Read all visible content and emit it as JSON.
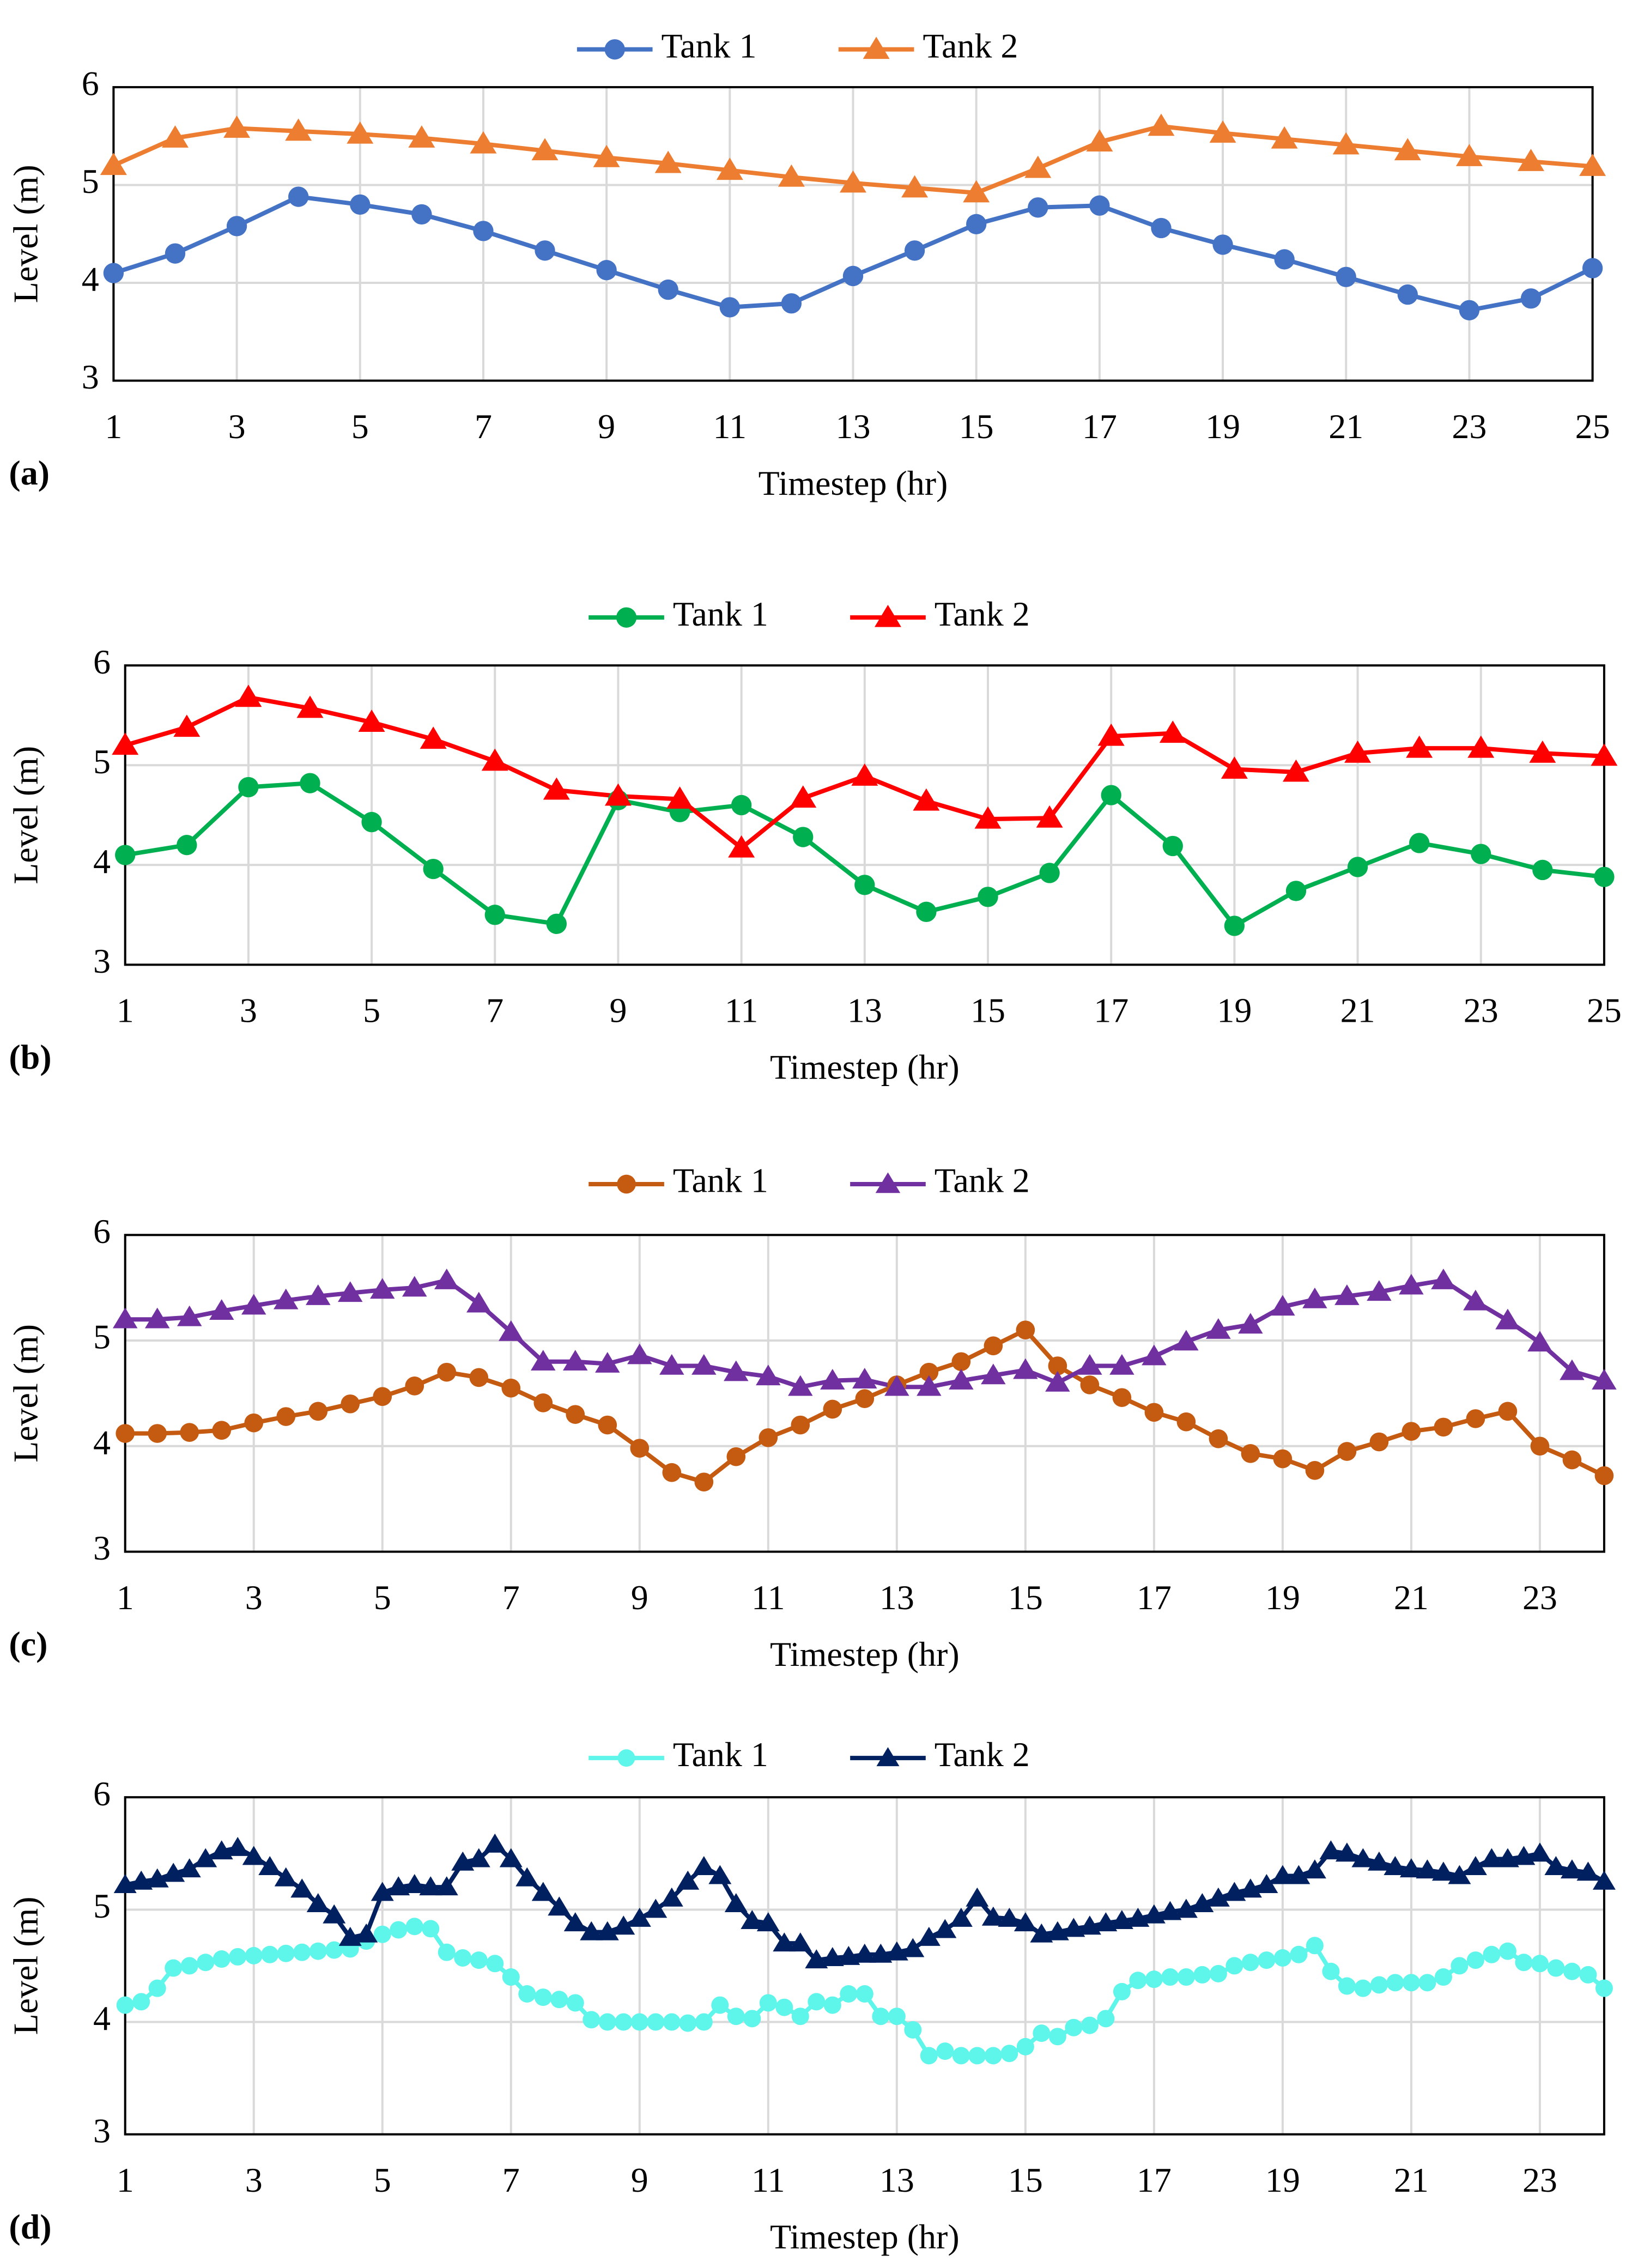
{
  "chart_data": [
    {
      "type": "line",
      "panel_label": "(a)",
      "xlabel": "Timestep (hr)",
      "ylabel": "Level (m)",
      "x": [
        1,
        2,
        3,
        4,
        5,
        6,
        7,
        8,
        9,
        10,
        11,
        12,
        13,
        14,
        15,
        16,
        17,
        18,
        19,
        20,
        21,
        22,
        23,
        24,
        25
      ],
      "xlim": [
        1,
        25
      ],
      "xticks": [
        1,
        3,
        5,
        7,
        9,
        11,
        13,
        15,
        17,
        19,
        21,
        23,
        25
      ],
      "ylim": [
        3,
        6
      ],
      "yticks": [
        3,
        4,
        5,
        6
      ],
      "grid": true,
      "legend": "top",
      "series": [
        {
          "name": "Tank 1",
          "color": "#4472c4",
          "marker": "circle",
          "values": [
            4.1,
            4.3,
            4.58,
            4.88,
            4.8,
            4.7,
            4.53,
            4.33,
            4.13,
            3.93,
            3.75,
            3.79,
            4.07,
            4.33,
            4.6,
            4.77,
            4.79,
            4.56,
            4.39,
            4.24,
            4.06,
            3.88,
            3.72,
            3.84,
            4.15
          ]
        },
        {
          "name": "Tank 2",
          "color": "#ed7d31",
          "marker": "triangle",
          "values": [
            5.2,
            5.48,
            5.58,
            5.55,
            5.52,
            5.48,
            5.42,
            5.35,
            5.28,
            5.22,
            5.15,
            5.08,
            5.02,
            4.97,
            4.92,
            5.17,
            5.44,
            5.6,
            5.53,
            5.47,
            5.41,
            5.35,
            5.29,
            5.24,
            5.19
          ]
        }
      ]
    },
    {
      "type": "line",
      "panel_label": "(b)",
      "xlabel": "Timestep (hr)",
      "ylabel": "Level (m)",
      "x": [
        1,
        2,
        3,
        4,
        5,
        6,
        7,
        8,
        9,
        10,
        11,
        12,
        13,
        14,
        15,
        16,
        17,
        18,
        19,
        20,
        21,
        22,
        23,
        24,
        25
      ],
      "xlim": [
        1,
        25
      ],
      "xticks": [
        1,
        3,
        5,
        7,
        9,
        11,
        13,
        15,
        17,
        19,
        21,
        23,
        25
      ],
      "ylim": [
        3,
        6
      ],
      "yticks": [
        3,
        4,
        5,
        6
      ],
      "grid": true,
      "legend": "top",
      "series": [
        {
          "name": "Tank 1",
          "color": "#00b050",
          "marker": "circle",
          "values": [
            4.1,
            4.2,
            4.78,
            4.82,
            4.43,
            3.96,
            3.5,
            3.41,
            4.65,
            4.53,
            4.6,
            4.28,
            3.8,
            3.53,
            3.68,
            3.92,
            4.7,
            4.19,
            3.39,
            3.74,
            3.98,
            4.22,
            4.11,
            3.95,
            3.88
          ]
        },
        {
          "name": "Tank 2",
          "color": "#ff0000",
          "marker": "triangle",
          "values": [
            5.2,
            5.38,
            5.68,
            5.57,
            5.43,
            5.26,
            5.04,
            4.75,
            4.69,
            4.66,
            4.17,
            4.67,
            4.89,
            4.64,
            4.46,
            4.47,
            5.29,
            5.32,
            4.96,
            4.93,
            5.12,
            5.17,
            5.17,
            5.12,
            5.09
          ]
        }
      ]
    },
    {
      "type": "line",
      "panel_label": "(c)",
      "xlabel": "Timestep (hr)",
      "ylabel": "Level (m)",
      "x": [
        1,
        1.5,
        2,
        2.5,
        3,
        3.5,
        4,
        4.5,
        5,
        5.5,
        6,
        6.5,
        7,
        7.5,
        8,
        8.5,
        9,
        9.5,
        10,
        10.5,
        11,
        11.5,
        12,
        12.5,
        13,
        13.5,
        14,
        14.5,
        15,
        15.5,
        16,
        16.5,
        17,
        17.5,
        18,
        18.5,
        19,
        19.5,
        20,
        20.5,
        21,
        21.5,
        22,
        22.5,
        23,
        23.5,
        24
      ],
      "xlim": [
        1,
        24
      ],
      "xticks": [
        1,
        3,
        5,
        7,
        9,
        11,
        13,
        15,
        17,
        19,
        21,
        23
      ],
      "ylim": [
        3,
        6
      ],
      "yticks": [
        3,
        4,
        5,
        6
      ],
      "grid": true,
      "legend": "top",
      "series": [
        {
          "name": "Tank 1",
          "color": "#c55a11",
          "marker": "circle",
          "values": [
            4.12,
            4.12,
            4.13,
            4.15,
            4.22,
            4.28,
            4.33,
            4.4,
            4.47,
            4.57,
            4.7,
            4.65,
            4.55,
            4.41,
            4.3,
            4.2,
            3.98,
            3.75,
            3.66,
            3.9,
            4.08,
            4.2,
            4.35,
            4.45,
            4.58,
            4.7,
            4.8,
            4.95,
            5.1,
            4.76,
            4.58,
            4.46,
            4.32,
            4.23,
            4.07,
            3.93,
            3.88,
            3.77,
            3.95,
            4.04,
            4.14,
            4.18,
            4.26,
            4.33,
            4.0,
            3.87,
            3.72
          ]
        },
        {
          "name": "Tank 2",
          "color": "#7030a0",
          "marker": "triangle",
          "values": [
            5.2,
            5.2,
            5.22,
            5.28,
            5.33,
            5.38,
            5.42,
            5.45,
            5.48,
            5.5,
            5.57,
            5.35,
            5.08,
            4.8,
            4.8,
            4.78,
            4.86,
            4.76,
            4.76,
            4.7,
            4.66,
            4.56,
            4.62,
            4.63,
            4.56,
            4.56,
            4.62,
            4.67,
            4.72,
            4.6,
            4.76,
            4.76,
            4.85,
            4.99,
            5.1,
            5.15,
            5.32,
            5.39,
            5.42,
            5.46,
            5.52,
            5.57,
            5.37,
            5.19,
            4.98,
            4.71,
            4.62
          ]
        }
      ]
    },
    {
      "type": "line",
      "panel_label": "(d)",
      "xlabel": "Timestep (hr)",
      "ylabel": "Level (m)",
      "x": [
        1,
        1.25,
        1.5,
        1.75,
        2,
        2.25,
        2.5,
        2.75,
        3,
        3.25,
        3.5,
        3.75,
        4,
        4.25,
        4.5,
        4.75,
        5,
        5.25,
        5.5,
        5.75,
        6,
        6.25,
        6.5,
        6.75,
        7,
        7.25,
        7.5,
        7.75,
        8,
        8.25,
        8.5,
        8.75,
        9,
        9.25,
        9.5,
        9.75,
        10,
        10.25,
        10.5,
        10.75,
        11,
        11.25,
        11.5,
        11.75,
        12,
        12.25,
        12.5,
        12.75,
        13,
        13.25,
        13.5,
        13.75,
        14,
        14.25,
        14.5,
        14.75,
        15,
        15.25,
        15.5,
        15.75,
        16,
        16.25,
        16.5,
        16.75,
        17,
        17.25,
        17.5,
        17.75,
        18,
        18.25,
        18.5,
        18.75,
        19,
        19.25,
        19.5,
        19.75,
        20,
        20.25,
        20.5,
        20.75,
        21,
        21.25,
        21.5,
        21.75,
        22,
        22.25,
        22.5,
        22.75,
        23,
        23.25,
        23.5,
        23.75,
        24
      ],
      "xlim": [
        1,
        24
      ],
      "xticks": [
        1,
        3,
        5,
        7,
        9,
        11,
        13,
        15,
        17,
        19,
        21,
        23
      ],
      "ylim": [
        3,
        6
      ],
      "yticks": [
        3,
        4,
        5,
        6
      ],
      "grid": true,
      "legend": "top",
      "series": [
        {
          "name": "Tank 1",
          "color": "#5ef5ea",
          "marker": "circle",
          "values": [
            4.15,
            4.18,
            4.3,
            4.48,
            4.5,
            4.53,
            4.56,
            4.58,
            4.59,
            4.6,
            4.61,
            4.62,
            4.63,
            4.64,
            4.65,
            4.72,
            4.78,
            4.82,
            4.85,
            4.83,
            4.62,
            4.57,
            4.55,
            4.52,
            4.4,
            4.25,
            4.22,
            4.2,
            4.17,
            4.02,
            4.0,
            4.0,
            4.0,
            4.0,
            4.0,
            3.99,
            4.0,
            4.15,
            4.05,
            4.03,
            4.17,
            4.13,
            4.05,
            4.18,
            4.15,
            4.25,
            4.25,
            4.05,
            4.05,
            3.93,
            3.7,
            3.74,
            3.7,
            3.7,
            3.7,
            3.72,
            3.78,
            3.9,
            3.87,
            3.95,
            3.97,
            4.03,
            4.27,
            4.37,
            4.38,
            4.4,
            4.4,
            4.42,
            4.43,
            4.5,
            4.53,
            4.55,
            4.57,
            4.6,
            4.68,
            4.45,
            4.32,
            4.3,
            4.33,
            4.35,
            4.35,
            4.35,
            4.4,
            4.5,
            4.55,
            4.6,
            4.63,
            4.53,
            4.52,
            4.48,
            4.45,
            4.42,
            4.3
          ]
        },
        {
          "name": "Tank 2",
          "color": "#002060",
          "marker": "triangle",
          "values": [
            5.22,
            5.25,
            5.27,
            5.32,
            5.36,
            5.45,
            5.52,
            5.55,
            5.47,
            5.38,
            5.28,
            5.18,
            5.05,
            4.95,
            4.75,
            4.78,
            5.15,
            5.2,
            5.22,
            5.2,
            5.2,
            5.42,
            5.45,
            5.58,
            5.45,
            5.28,
            5.15,
            5.02,
            4.88,
            4.8,
            4.8,
            4.85,
            4.92,
            5.0,
            5.1,
            5.25,
            5.38,
            5.3,
            5.05,
            4.9,
            4.88,
            4.7,
            4.7,
            4.55,
            4.57,
            4.58,
            4.6,
            4.6,
            4.62,
            4.65,
            4.75,
            4.82,
            4.92,
            5.1,
            4.93,
            4.92,
            4.88,
            4.78,
            4.8,
            4.83,
            4.85,
            4.88,
            4.9,
            4.92,
            4.95,
            4.98,
            5.0,
            5.05,
            5.1,
            5.15,
            5.18,
            5.22,
            5.3,
            5.3,
            5.35,
            5.52,
            5.5,
            5.45,
            5.42,
            5.38,
            5.36,
            5.35,
            5.33,
            5.3,
            5.38,
            5.45,
            5.45,
            5.47,
            5.5,
            5.38,
            5.35,
            5.33,
            5.25
          ]
        }
      ]
    }
  ]
}
